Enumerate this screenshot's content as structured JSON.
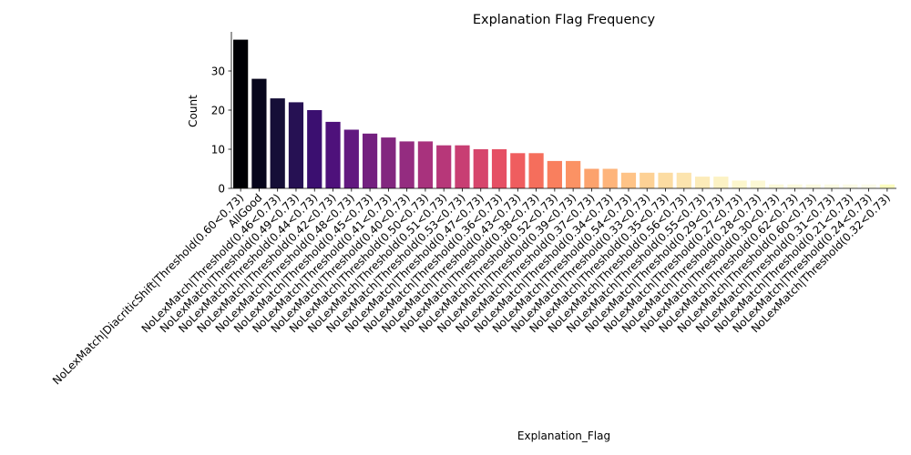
{
  "chart_data": {
    "type": "bar",
    "title": "Explanation Flag Frequency",
    "xlabel": "Explanation_Flag",
    "ylabel": "Count",
    "ylim": [
      0,
      40
    ],
    "yticks": [
      0,
      10,
      20,
      30
    ],
    "grid": false,
    "palette": "magma",
    "categories": [
      "NoLexMatch|DiacriticShift|Threshold(0.60<0.73)",
      "AllGood",
      "NoLexMatch|Threshold(0.46<0.73)",
      "NoLexMatch|Threshold(0.49<0.73)",
      "NoLexMatch|Threshold(0.44<0.73)",
      "NoLexMatch|Threshold(0.42<0.73)",
      "NoLexMatch|Threshold(0.48<0.73)",
      "NoLexMatch|Threshold(0.45<0.73)",
      "NoLexMatch|Threshold(0.41<0.73)",
      "NoLexMatch|Threshold(0.40<0.73)",
      "NoLexMatch|Threshold(0.50<0.73)",
      "NoLexMatch|Threshold(0.51<0.73)",
      "NoLexMatch|Threshold(0.53<0.73)",
      "NoLexMatch|Threshold(0.47<0.73)",
      "NoLexMatch|Threshold(0.36<0.73)",
      "NoLexMatch|Threshold(0.43<0.73)",
      "NoLexMatch|Threshold(0.38<0.73)",
      "NoLexMatch|Threshold(0.52<0.73)",
      "NoLexMatch|Threshold(0.39<0.73)",
      "NoLexMatch|Threshold(0.37<0.73)",
      "NoLexMatch|Threshold(0.34<0.73)",
      "NoLexMatch|Threshold(0.54<0.73)",
      "NoLexMatch|Threshold(0.33<0.73)",
      "NoLexMatch|Threshold(0.35<0.73)",
      "NoLexMatch|Threshold(0.56<0.73)",
      "NoLexMatch|Threshold(0.55<0.73)",
      "NoLexMatch|Threshold(0.29<0.73)",
      "NoLexMatch|Threshold(0.27<0.73)",
      "NoLexMatch|Threshold(0.28<0.73)",
      "NoLexMatch|Threshold(0.30<0.73)",
      "NoLexMatch|Threshold(0.62<0.73)",
      "NoLexMatch|Threshold(0.60<0.73)",
      "NoLexMatch|Threshold(0.31<0.73)",
      "NoLexMatch|Threshold(0.21<0.73)",
      "NoLexMatch|Threshold(0.24<0.73)",
      "NoLexMatch|Threshold(0.32<0.73)"
    ],
    "values": [
      38,
      28,
      23,
      22,
      20,
      17,
      15,
      14,
      13,
      12,
      12,
      11,
      11,
      10,
      10,
      9,
      9,
      7,
      7,
      5,
      5,
      4,
      4,
      4,
      4,
      3,
      3,
      2,
      2,
      1,
      1,
      1,
      1,
      1,
      1,
      1
    ],
    "colors": [
      "#000004",
      "#07061c",
      "#150e37",
      "#261153",
      "#3b0f70",
      "#4e117b",
      "#621980",
      "#73207f",
      "#82267f",
      "#942c80",
      "#a8327d",
      "#b73779",
      "#c83e73",
      "#d6456c",
      "#e55064",
      "#ef5d5f",
      "#f56e5c",
      "#f97f5e",
      "#fb9264",
      "#fca26d",
      "#feb47b",
      "#fec387",
      "#fdd195",
      "#fcdca2",
      "#fce4ae",
      "#fcebb9",
      "#fcf2c4",
      "#fcf6cd",
      "#fcf8d4",
      "#fcf9d9",
      "#fcfadc",
      "#fcfadf",
      "#fcfbe2",
      "#fcfbe5",
      "#fcfce8",
      "#fcfdbf"
    ]
  }
}
